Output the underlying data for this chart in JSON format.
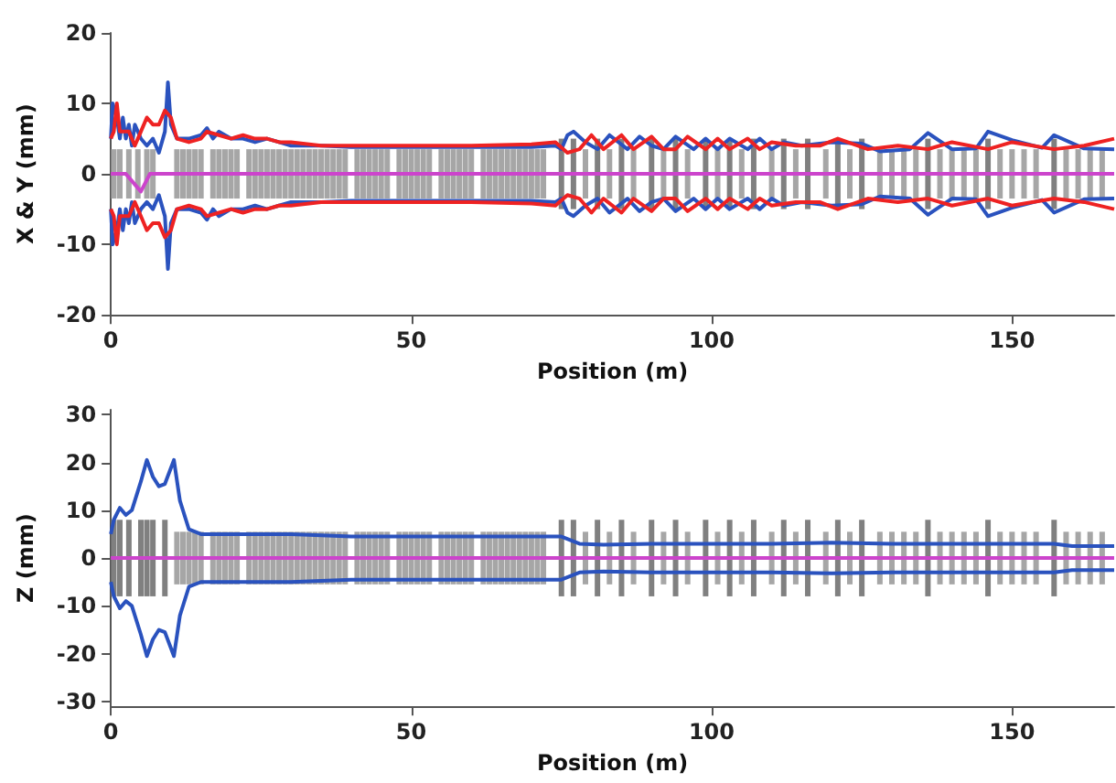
{
  "chart_data": [
    {
      "type": "line",
      "xlabel": "Position (m)",
      "ylabel": "X & Y (mm)",
      "xlim": [
        0,
        167
      ],
      "xticks": [
        0,
        50,
        100,
        150
      ],
      "ylim": [
        -20,
        20
      ],
      "yticks": [
        -20,
        -10,
        0,
        10,
        20
      ],
      "marker": "none",
      "series": [
        {
          "type": "bar",
          "color": "#a6a6a6",
          "x": [
            0.5,
            1.5,
            3,
            4.5,
            6,
            7,
            11,
            12,
            13,
            14,
            15,
            17,
            18,
            19,
            20,
            21,
            23,
            24,
            25,
            26,
            27,
            28,
            29,
            30,
            31,
            32,
            33,
            34,
            35,
            36,
            37,
            38,
            39,
            41,
            42,
            43,
            44,
            45,
            46,
            48,
            49,
            50,
            51,
            52,
            53,
            55,
            56,
            57,
            58,
            59,
            60,
            62,
            63,
            64,
            65,
            66,
            67,
            68,
            69,
            70,
            71,
            72,
            79,
            83,
            87,
            92,
            96,
            101,
            105,
            110,
            114,
            119,
            123,
            128,
            130,
            132,
            134,
            138,
            140,
            142,
            144,
            148,
            150,
            152,
            154,
            159,
            161,
            163,
            165
          ],
          "base": [
            -3.5,
            -3.5,
            -3.5,
            -3.5,
            -3.5,
            -3.5,
            -3.5,
            -3.5,
            -3.5,
            -3.5,
            -3.5,
            -3.5,
            -3.5,
            -3.5,
            -3.5,
            -3.5,
            -3.5,
            -3.5,
            -3.5,
            -3.5,
            -3.5,
            -3.5,
            -3.5,
            -3.5,
            -3.5,
            -3.5,
            -3.5,
            -3.5,
            -3.5,
            -3.5,
            -3.5,
            -3.5,
            -3.5,
            -3.5,
            -3.5,
            -3.5,
            -3.5,
            -3.5,
            -3.5,
            -3.5,
            -3.5,
            -3.5,
            -3.5,
            -3.5,
            -3.5,
            -3.5,
            -3.5,
            -3.5,
            -3.5,
            -3.5,
            -3.5,
            -3.5,
            -3.5,
            -3.5,
            -3.5,
            -3.5,
            -3.5,
            -3.5,
            -3.5,
            -3.5,
            -3.5,
            -3.5,
            -3.5,
            -3.5,
            -3.5,
            -3.5,
            -3.5,
            -3.5,
            -3.5,
            -3.5,
            -3.5,
            -3.5,
            -3.5,
            -3.5,
            -3.5,
            -3.5,
            -3.5,
            -3.5,
            -3.5,
            -3.5,
            -3.5,
            -3.5,
            -3.5,
            -3.5,
            -3.5,
            -3.5,
            -3.5,
            -3.5,
            -3.5
          ],
          "values": [
            7,
            7,
            7,
            7,
            7,
            7,
            7,
            7,
            7,
            7,
            7,
            7,
            7,
            7,
            7,
            7,
            7,
            7,
            7,
            7,
            7,
            7,
            7,
            7,
            7,
            7,
            7,
            7,
            7,
            7,
            7,
            7,
            7,
            7,
            7,
            7,
            7,
            7,
            7,
            7,
            7,
            7,
            7,
            7,
            7,
            7,
            7,
            7,
            7,
            7,
            7,
            7,
            7,
            7,
            7,
            7,
            7,
            7,
            7,
            7,
            7,
            7,
            7,
            7,
            7,
            7,
            7,
            7,
            7,
            7,
            7,
            7,
            7,
            7,
            7,
            7,
            7,
            7,
            7,
            7,
            7,
            7,
            7,
            7,
            7,
            7,
            7,
            7,
            7
          ]
        },
        {
          "type": "bar",
          "color": "#808080",
          "x": [
            75,
            77,
            81,
            85,
            90,
            94,
            99,
            103,
            107,
            112,
            116,
            121,
            125,
            136,
            146,
            157
          ],
          "base": [
            -5,
            -5,
            -5,
            -5,
            -5,
            -5,
            -5,
            -5,
            -5,
            -5,
            -5,
            -5,
            -5,
            -5,
            -5,
            -5
          ],
          "values": [
            10,
            10,
            10,
            10,
            10,
            10,
            10,
            10,
            10,
            10,
            10,
            10,
            10,
            10,
            10,
            10
          ]
        },
        {
          "color": "#cc44cc",
          "x": [
            0,
            2.5,
            5,
            6.5,
            167
          ],
          "values": [
            0,
            0,
            -2.5,
            0,
            0
          ]
        },
        {
          "color": "#2a52be",
          "x": [
            0,
            0.3,
            1,
            1.5,
            2,
            2.5,
            3,
            3.5,
            4,
            5,
            6,
            7,
            8,
            9,
            9.5,
            10,
            11,
            13,
            15,
            16,
            17,
            18,
            20,
            22,
            24,
            26,
            28,
            30,
            35,
            40,
            50,
            60,
            70,
            74,
            75,
            76,
            77,
            79,
            81,
            83,
            86,
            88,
            90,
            92,
            94,
            97,
            99,
            101,
            103,
            106,
            108,
            110,
            112,
            115,
            120,
            125,
            128,
            133,
            136,
            140,
            144,
            146,
            150,
            155,
            157,
            162,
            167
          ],
          "values": [
            5,
            10,
            8,
            5,
            8,
            5,
            7,
            4,
            7,
            5,
            4,
            5,
            3,
            6,
            13,
            7,
            5,
            5,
            5.5,
            6.5,
            5,
            6,
            5,
            5,
            4.5,
            5,
            4.5,
            4,
            4,
            3.8,
            3.8,
            3.8,
            3.8,
            4,
            3.5,
            5.5,
            6,
            4.5,
            3.5,
            5.5,
            3.5,
            5.3,
            4,
            3.5,
            5.3,
            3.5,
            5,
            3.5,
            5,
            3.5,
            5,
            3.5,
            4.5,
            4,
            4.5,
            4.3,
            3.2,
            3.5,
            5.8,
            3.5,
            3.6,
            6,
            4.8,
            3.7,
            5.5,
            3.6,
            3.5
          ]
        },
        {
          "color": "#2a52be",
          "x": [
            0,
            0.3,
            1,
            1.5,
            2,
            2.5,
            3,
            3.5,
            4,
            5,
            6,
            7,
            8,
            9,
            9.5,
            10,
            11,
            13,
            15,
            16,
            17,
            18,
            20,
            22,
            24,
            26,
            28,
            30,
            35,
            40,
            50,
            60,
            70,
            74,
            75,
            76,
            77,
            79,
            81,
            83,
            86,
            88,
            90,
            92,
            94,
            97,
            99,
            101,
            103,
            106,
            108,
            110,
            112,
            115,
            120,
            125,
            128,
            133,
            136,
            140,
            144,
            146,
            150,
            155,
            157,
            162,
            167
          ],
          "values": [
            -5,
            -10,
            -8,
            -5,
            -8,
            -5,
            -7,
            -4,
            -7,
            -5,
            -4,
            -5,
            -3,
            -6,
            -13.5,
            -7,
            -5,
            -5,
            -5.5,
            -6.5,
            -5,
            -6,
            -5,
            -5,
            -4.5,
            -5,
            -4.5,
            -4,
            -4,
            -3.8,
            -3.8,
            -3.8,
            -3.8,
            -4,
            -3.5,
            -5.5,
            -6,
            -4.5,
            -3.5,
            -5.5,
            -3.5,
            -5.3,
            -4,
            -3.5,
            -5.3,
            -3.5,
            -5,
            -3.5,
            -5,
            -3.5,
            -5,
            -3.5,
            -4.5,
            -4,
            -4.5,
            -4.3,
            -3.2,
            -3.5,
            -5.8,
            -3.5,
            -3.6,
            -6,
            -4.8,
            -3.7,
            -5.5,
            -3.6,
            -3.5
          ]
        },
        {
          "color": "#ee2222",
          "x": [
            0,
            0.5,
            1,
            1.5,
            3,
            4,
            5,
            6,
            7,
            8,
            9,
            10,
            11,
            13,
            15,
            16,
            18,
            20,
            22,
            24,
            26,
            28,
            30,
            35,
            40,
            50,
            60,
            70,
            74,
            76,
            78,
            80,
            82,
            85,
            87,
            90,
            92,
            94,
            96,
            99,
            101,
            103,
            106,
            108,
            110,
            114,
            118,
            121,
            126,
            131,
            136,
            140,
            146,
            150,
            157,
            162,
            167
          ],
          "values": [
            5,
            6,
            10,
            6,
            6,
            4,
            6,
            8,
            7,
            7,
            9,
            8,
            5,
            4.5,
            5,
            6,
            5.5,
            5,
            5.5,
            5,
            5,
            4.5,
            4.5,
            4,
            4,
            4,
            4,
            4.2,
            4.5,
            3,
            3.5,
            5.5,
            3.5,
            5.5,
            3.5,
            5.3,
            3.5,
            3.5,
            5.3,
            3.5,
            5,
            3.5,
            5,
            3.5,
            4.5,
            4,
            4,
            5,
            3.5,
            4,
            3.5,
            4.5,
            3.5,
            4.5,
            3.5,
            4,
            5
          ]
        },
        {
          "color": "#ee2222",
          "x": [
            0,
            0.5,
            1,
            1.5,
            3,
            4,
            5,
            6,
            7,
            8,
            9,
            10,
            11,
            13,
            15,
            16,
            18,
            20,
            22,
            24,
            26,
            28,
            30,
            35,
            40,
            50,
            60,
            70,
            74,
            76,
            78,
            80,
            82,
            85,
            87,
            90,
            92,
            94,
            96,
            99,
            101,
            103,
            106,
            108,
            110,
            114,
            118,
            121,
            126,
            131,
            136,
            140,
            146,
            150,
            157,
            162,
            167
          ],
          "values": [
            -5,
            -6,
            -10,
            -6,
            -6,
            -4,
            -6,
            -8,
            -7,
            -7,
            -9,
            -8,
            -5,
            -4.5,
            -5,
            -6,
            -5.5,
            -5,
            -5.5,
            -5,
            -5,
            -4.5,
            -4.5,
            -4,
            -4,
            -4,
            -4,
            -4.2,
            -4.5,
            -3,
            -3.5,
            -5.5,
            -3.5,
            -5.5,
            -3.5,
            -5.3,
            -3.5,
            -3.5,
            -5.3,
            -3.5,
            -5,
            -3.5,
            -5,
            -3.5,
            -4.5,
            -4,
            -4,
            -5,
            -3.5,
            -4,
            -3.5,
            -4.5,
            -3.5,
            -4.5,
            -3.5,
            -4,
            -5
          ]
        }
      ]
    },
    {
      "type": "line",
      "xlabel": "Position (m)",
      "ylabel": "Z (mm)",
      "xlim": [
        0,
        167
      ],
      "xticks": [
        0,
        50,
        100,
        150
      ],
      "ylim": [
        -31,
        31
      ],
      "yticks": [
        -30,
        -20,
        -10,
        0,
        10,
        20,
        30
      ],
      "marker": "none",
      "series": [
        {
          "type": "bar",
          "color": "#a6a6a6",
          "x": [
            11,
            12,
            13,
            14,
            15,
            17,
            18,
            19,
            20,
            21,
            23,
            24,
            25,
            26,
            27,
            28,
            29,
            30,
            31,
            32,
            33,
            34,
            35,
            36,
            37,
            38,
            39,
            41,
            42,
            43,
            44,
            45,
            46,
            48,
            49,
            50,
            51,
            52,
            53,
            55,
            56,
            57,
            58,
            59,
            60,
            62,
            63,
            64,
            65,
            66,
            67,
            68,
            69,
            70,
            71,
            72,
            79,
            83,
            87,
            92,
            96,
            101,
            105,
            110,
            114,
            119,
            123,
            128,
            130,
            132,
            134,
            138,
            140,
            142,
            144,
            148,
            150,
            152,
            154,
            159,
            161,
            163,
            165
          ],
          "base": [
            -5.5,
            -5.5,
            -5.5,
            -5.5,
            -5.5,
            -5.5,
            -5.5,
            -5.5,
            -5.5,
            -5.5,
            -5.5,
            -5.5,
            -5.5,
            -5.5,
            -5.5,
            -5.5,
            -5.5,
            -5.5,
            -5.5,
            -5.5,
            -5.5,
            -5.5,
            -5.5,
            -5.5,
            -5.5,
            -5.5,
            -5.5,
            -5.5,
            -5.5,
            -5.5,
            -5.5,
            -5.5,
            -5.5,
            -5.5,
            -5.5,
            -5.5,
            -5.5,
            -5.5,
            -5.5,
            -5.5,
            -5.5,
            -5.5,
            -5.5,
            -5.5,
            -5.5,
            -5.5,
            -5.5,
            -5.5,
            -5.5,
            -5.5,
            -5.5,
            -5.5,
            -5.5,
            -5.5,
            -5.5,
            -5.5,
            -5.5,
            -5.5,
            -5.5,
            -5.5,
            -5.5,
            -5.5,
            -5.5,
            -5.5,
            -5.5,
            -5.5,
            -5.5,
            -5.5,
            -5.5,
            -5.5,
            -5.5,
            -5.5,
            -5.5,
            -5.5,
            -5.5,
            -5.5,
            -5.5,
            -5.5,
            -5.5,
            -5.5,
            -5.5,
            -5.5,
            -5.5
          ],
          "values": [
            11,
            11,
            11,
            11,
            11,
            11,
            11,
            11,
            11,
            11,
            11,
            11,
            11,
            11,
            11,
            11,
            11,
            11,
            11,
            11,
            11,
            11,
            11,
            11,
            11,
            11,
            11,
            11,
            11,
            11,
            11,
            11,
            11,
            11,
            11,
            11,
            11,
            11,
            11,
            11,
            11,
            11,
            11,
            11,
            11,
            11,
            11,
            11,
            11,
            11,
            11,
            11,
            11,
            11,
            11,
            11,
            11,
            11,
            11,
            11,
            11,
            11,
            11,
            11,
            11,
            11,
            11,
            11,
            11,
            11,
            11,
            11,
            11,
            11,
            11,
            11,
            11,
            11,
            11,
            11,
            11,
            11,
            11
          ]
        },
        {
          "type": "bar",
          "color": "#808080",
          "x": [
            0.5,
            1.5,
            3,
            5,
            6,
            7,
            9,
            75,
            77,
            81,
            85,
            90,
            94,
            99,
            103,
            107,
            112,
            116,
            121,
            125,
            136,
            146,
            157
          ],
          "base": [
            -8,
            -8,
            -8,
            -8,
            -8,
            -8,
            -8,
            -8,
            -8,
            -8,
            -8,
            -8,
            -8,
            -8,
            -8,
            -8,
            -8,
            -8,
            -8,
            -8,
            -8,
            -8,
            -8
          ],
          "values": [
            16,
            16,
            16,
            16,
            16,
            16,
            16,
            16,
            16,
            16,
            16,
            16,
            16,
            16,
            16,
            16,
            16,
            16,
            16,
            16,
            16,
            16,
            16
          ]
        },
        {
          "color": "#cc44cc",
          "x": [
            0,
            167
          ],
          "values": [
            0,
            0
          ]
        },
        {
          "color": "#2a52be",
          "x": [
            0,
            0.5,
            1.5,
            2.5,
            3.5,
            5,
            6,
            7,
            8,
            9,
            10.5,
            11.5,
            13,
            15,
            20,
            30,
            40,
            50,
            60,
            70,
            75,
            78,
            82,
            90,
            100,
            110,
            120,
            130,
            140,
            150,
            157,
            160,
            167
          ],
          "values": [
            5,
            8,
            10.5,
            9,
            10,
            16,
            20.5,
            17,
            15,
            15.5,
            20.5,
            12,
            6,
            5,
            5,
            5,
            4.5,
            4.5,
            4.5,
            4.5,
            4.5,
            3,
            2.8,
            3,
            3,
            3,
            3.2,
            3,
            3,
            3,
            3,
            2.5,
            2.5
          ]
        },
        {
          "color": "#2a52be",
          "x": [
            0,
            0.5,
            1.5,
            2.5,
            3.5,
            5,
            6,
            7,
            8,
            9,
            10.5,
            11.5,
            13,
            15,
            20,
            30,
            40,
            50,
            60,
            70,
            75,
            78,
            82,
            90,
            100,
            110,
            120,
            130,
            140,
            150,
            157,
            160,
            167
          ],
          "values": [
            -5,
            -8,
            -10.5,
            -9,
            -10,
            -16,
            -20.5,
            -17,
            -15,
            -15.5,
            -20.5,
            -12,
            -6,
            -5,
            -5,
            -5,
            -4.5,
            -4.5,
            -4.5,
            -4.5,
            -4.5,
            -3,
            -2.8,
            -3,
            -3,
            -3,
            -3.2,
            -3,
            -3,
            -3,
            -3,
            -2.5,
            -2.5
          ]
        }
      ]
    }
  ]
}
